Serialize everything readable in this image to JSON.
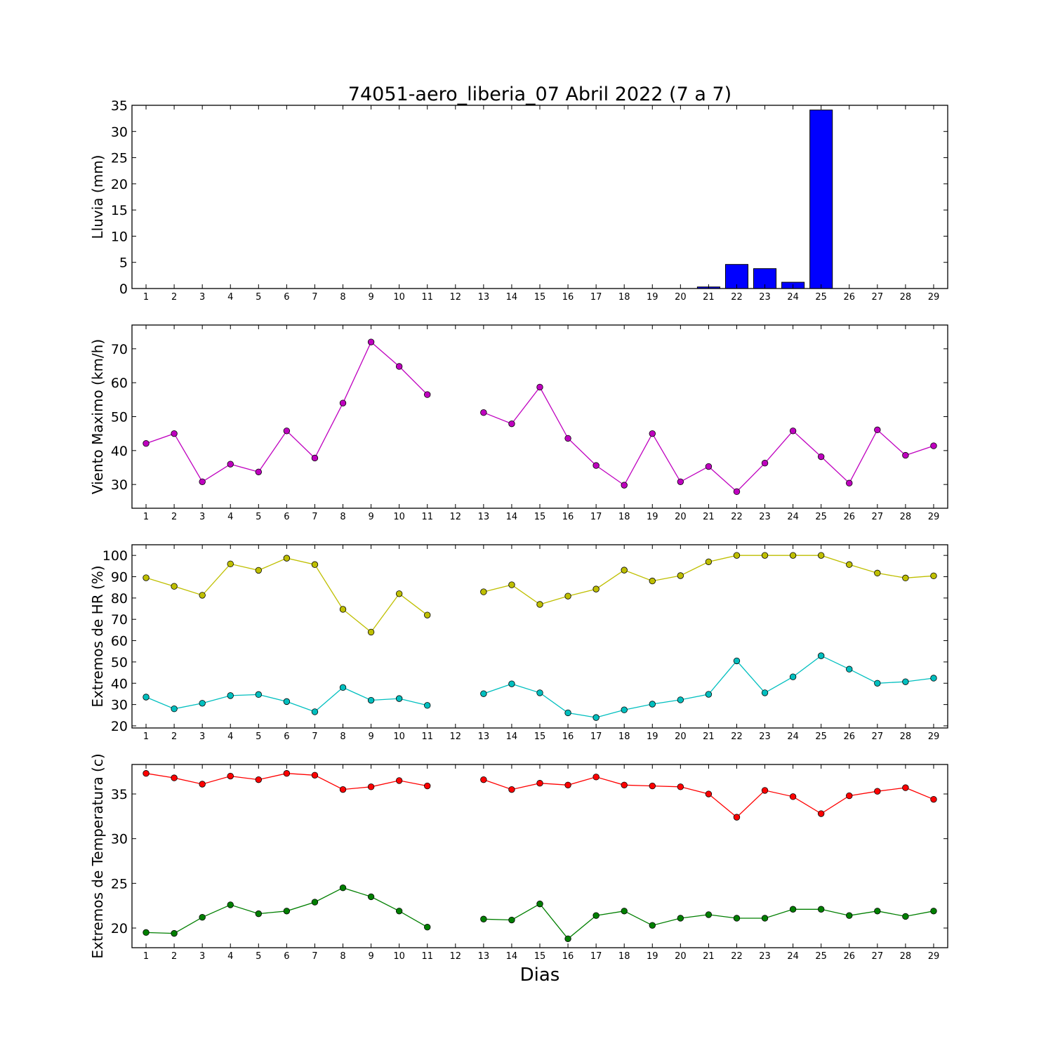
{
  "figure": {
    "title": "74051-aero_liberia_07 Abril 2022  (7 a 7)",
    "xlabel": "Dias"
  },
  "chart_data": [
    {
      "type": "bar",
      "ylabel": "Lluvia (mm)",
      "ylim": [
        0,
        35
      ],
      "yticks": [
        0,
        5,
        10,
        15,
        20,
        25,
        30,
        35
      ],
      "xlim": [
        0.5,
        29.5
      ],
      "categories": [
        1,
        2,
        3,
        4,
        5,
        6,
        7,
        8,
        9,
        10,
        11,
        12,
        13,
        14,
        15,
        16,
        17,
        18,
        19,
        20,
        21,
        22,
        23,
        24,
        25,
        26,
        27,
        28,
        29
      ],
      "values": [
        0,
        0,
        0,
        0,
        0,
        0,
        0,
        0,
        0,
        0,
        0,
        0,
        0,
        0,
        0,
        0,
        0,
        0,
        0,
        0,
        0.3,
        4.6,
        3.8,
        1.2,
        34.1,
        0,
        0,
        0,
        0
      ],
      "color": "#0000ff"
    },
    {
      "type": "line",
      "ylabel": "Viento Maximo (km/h)",
      "ylim": [
        23,
        77
      ],
      "yticks": [
        30,
        40,
        50,
        60,
        70
      ],
      "xlim": [
        0.5,
        29.5
      ],
      "x": [
        1,
        2,
        3,
        4,
        5,
        6,
        7,
        8,
        9,
        10,
        11,
        12,
        13,
        14,
        15,
        16,
        17,
        18,
        19,
        20,
        21,
        22,
        23,
        24,
        25,
        26,
        27,
        28,
        29
      ],
      "series": [
        {
          "color": "#bf00bf",
          "values": [
            42.1,
            45.0,
            30.8,
            36.0,
            33.7,
            45.8,
            37.8,
            54.0,
            72.0,
            64.8,
            56.5,
            null,
            51.2,
            47.9,
            58.7,
            43.6,
            35.6,
            29.8,
            45.0,
            30.8,
            35.3,
            27.9,
            36.3,
            45.8,
            38.2,
            30.4,
            46.1,
            38.6,
            41.4
          ]
        }
      ]
    },
    {
      "type": "line",
      "ylabel": "Extremos de HR (%)",
      "ylim": [
        19,
        105
      ],
      "yticks": [
        20,
        30,
        40,
        50,
        60,
        70,
        80,
        90,
        100
      ],
      "xlim": [
        0.5,
        29.5
      ],
      "x": [
        1,
        2,
        3,
        4,
        5,
        6,
        7,
        8,
        9,
        10,
        11,
        12,
        13,
        14,
        15,
        16,
        17,
        18,
        19,
        20,
        21,
        22,
        23,
        24,
        25,
        26,
        27,
        28,
        29
      ],
      "series": [
        {
          "color": "#bfbf00",
          "values": [
            89.5,
            85.5,
            81.3,
            96.0,
            93.0,
            98.7,
            95.7,
            74.7,
            64.0,
            82.0,
            72.0,
            null,
            82.9,
            86.2,
            77.0,
            80.9,
            84.2,
            93.1,
            88.0,
            90.5,
            97.0,
            100,
            100,
            100,
            100,
            95.7,
            91.7,
            89.4,
            90.4
          ]
        },
        {
          "color": "#00bfbf",
          "values": [
            33.5,
            28.0,
            30.6,
            34.2,
            34.7,
            31.4,
            26.6,
            38.0,
            32.0,
            32.8,
            29.6,
            null,
            35.1,
            39.7,
            35.5,
            26.1,
            23.9,
            27.5,
            30.2,
            32.2,
            34.8,
            50.5,
            35.5,
            43.0,
            52.9,
            46.6,
            40.0,
            40.7,
            42.4
          ]
        }
      ]
    },
    {
      "type": "line",
      "ylabel": "Extremos de Temperatura (c)",
      "ylim": [
        17.8,
        38.3
      ],
      "yticks": [
        20,
        25,
        30,
        35
      ],
      "xlim": [
        0.5,
        29.5
      ],
      "x": [
        1,
        2,
        3,
        4,
        5,
        6,
        7,
        8,
        9,
        10,
        11,
        12,
        13,
        14,
        15,
        16,
        17,
        18,
        19,
        20,
        21,
        22,
        23,
        24,
        25,
        26,
        27,
        28,
        29
      ],
      "series": [
        {
          "color": "#ff0000",
          "values": [
            37.3,
            36.8,
            36.1,
            37.0,
            36.6,
            37.3,
            37.1,
            35.5,
            35.8,
            36.5,
            35.9,
            null,
            36.6,
            35.5,
            36.2,
            36.0,
            36.9,
            36.0,
            35.9,
            35.8,
            35.0,
            32.4,
            35.4,
            34.7,
            32.8,
            34.8,
            35.3,
            35.7,
            34.4
          ]
        },
        {
          "color": "#007f00",
          "values": [
            19.5,
            19.4,
            21.2,
            22.6,
            21.6,
            21.9,
            22.9,
            24.5,
            23.5,
            21.9,
            20.1,
            null,
            21.0,
            20.9,
            22.7,
            18.8,
            21.4,
            21.9,
            20.3,
            21.1,
            21.5,
            21.1,
            21.1,
            22.1,
            22.1,
            21.4,
            21.9,
            21.3,
            21.9
          ]
        }
      ]
    }
  ]
}
